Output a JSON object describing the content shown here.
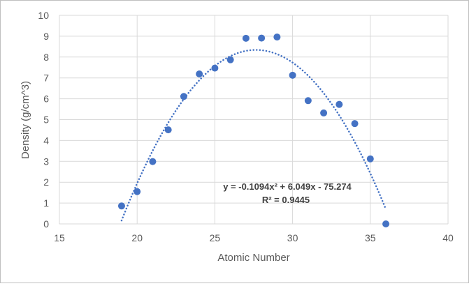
{
  "chart_data": {
    "type": "scatter",
    "title": "",
    "xlabel": "Atomic Number",
    "ylabel": "Density (g/cm^3)",
    "xlim": [
      15,
      40
    ],
    "ylim": [
      0,
      10
    ],
    "x_ticks": [
      15,
      20,
      25,
      30,
      35,
      40
    ],
    "y_ticks": [
      0,
      1,
      2,
      3,
      4,
      5,
      6,
      7,
      8,
      9,
      10
    ],
    "grid": true,
    "legend": "none",
    "marker_color": "#4472c4",
    "series": [
      {
        "points": [
          {
            "x": 19,
            "y": 0.86
          },
          {
            "x": 20,
            "y": 1.55
          },
          {
            "x": 21,
            "y": 2.99
          },
          {
            "x": 22,
            "y": 4.51
          },
          {
            "x": 23,
            "y": 6.11
          },
          {
            "x": 24,
            "y": 7.19
          },
          {
            "x": 25,
            "y": 7.47
          },
          {
            "x": 26,
            "y": 7.87
          },
          {
            "x": 27,
            "y": 8.9
          },
          {
            "x": 28,
            "y": 8.91
          },
          {
            "x": 29,
            "y": 8.96
          },
          {
            "x": 30,
            "y": 7.13
          },
          {
            "x": 31,
            "y": 5.91
          },
          {
            "x": 32,
            "y": 5.32
          },
          {
            "x": 33,
            "y": 5.73
          },
          {
            "x": 34,
            "y": 4.81
          },
          {
            "x": 35,
            "y": 3.12
          },
          {
            "x": 36,
            "y": 0.0
          }
        ]
      }
    ],
    "trendline": {
      "type": "polynomial",
      "order": 2,
      "coefficients": [
        -0.1094,
        6.049,
        -75.274
      ],
      "x_range": [
        19,
        36
      ],
      "style": "dotted",
      "color": "#4472c4",
      "equation_label": "y = -0.1094x² + 6.049x - 75.274",
      "r2_label": "R² = 0.9445"
    }
  }
}
